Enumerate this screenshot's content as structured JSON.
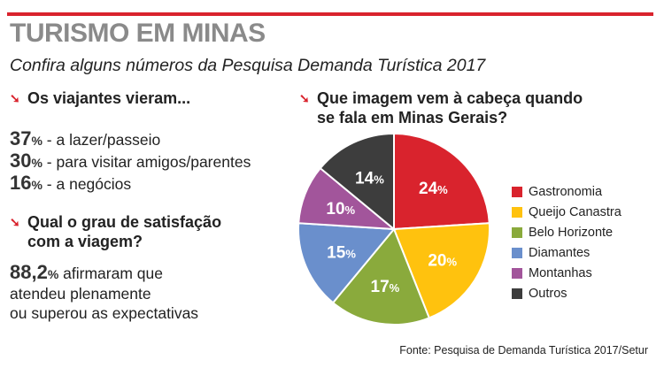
{
  "header": {
    "title": "TURISMO EM MINAS",
    "subtitle": "Confira alguns números da Pesquisa Demanda Turística 2017"
  },
  "left": {
    "q1": "Os viajantes vieram...",
    "stats": [
      {
        "value": "37",
        "pct": "%",
        "text": " - a lazer/passeio"
      },
      {
        "value": "30",
        "pct": "%",
        "text": " - para visitar amigos/parentes"
      },
      {
        "value": "16",
        "pct": "%",
        "text": " - a negócios"
      }
    ],
    "q2_line1": "Qual o grau de satisfação",
    "q2_line2": "com a viagem?",
    "satisfaction_value": "88,2",
    "satisfaction_pct": "%",
    "satisfaction_line1": " afirmaram que",
    "satisfaction_line2": "atendeu plenamente",
    "satisfaction_line3": "ou superou as expectativas"
  },
  "right": {
    "q3_line1": "Que imagem vem à cabeça quando",
    "q3_line2": "se fala em Minas Gerais?"
  },
  "chart_data": {
    "type": "pie",
    "title": "Que imagem vem à cabeça quando se fala em Minas Gerais?",
    "slices": [
      {
        "label": "Gastronomia",
        "value": 24,
        "color": "#d9232d"
      },
      {
        "label": "Queijo Canastra",
        "value": 20,
        "color": "#ffc20e"
      },
      {
        "label": "Belo Horizonte",
        "value": 17,
        "color": "#8aaa3c"
      },
      {
        "label": "Diamantes",
        "value": 15,
        "color": "#6a8fcc"
      },
      {
        "label": "Montanhas",
        "value": 10,
        "color": "#a2559b"
      },
      {
        "label": "Outros",
        "value": 14,
        "color": "#3d3d3d"
      }
    ],
    "label_suffix": "%",
    "legend_position": "right"
  },
  "source": "Fonte: Pesquisa de Demanda Turística 2017/Setur"
}
